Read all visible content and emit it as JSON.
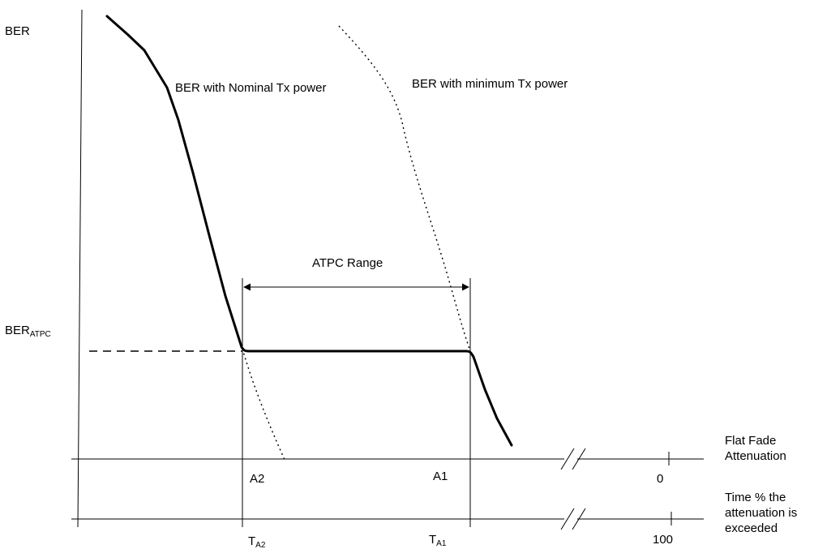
{
  "y_axis": {
    "label": "BER"
  },
  "threshold": {
    "label_main": "BER",
    "label_sub": "ATPC"
  },
  "curves": {
    "nominal": {
      "label": "BER with Nominal Tx power",
      "style": "solid"
    },
    "minimum": {
      "label": "BER with minimum Tx power",
      "style": "dotted"
    }
  },
  "range": {
    "label": "ATPC Range"
  },
  "axis_attenuation": {
    "title_lines": [
      "Flat Fade",
      "Attenuation"
    ],
    "marks": [
      "A2",
      "A1"
    ],
    "end_value": "0"
  },
  "axis_time": {
    "title_lines": [
      "Time % the",
      "attenuation is",
      "exceeded"
    ],
    "marks": [
      {
        "main": "T",
        "sub": "A2"
      },
      {
        "main": "T",
        "sub": "A1"
      }
    ],
    "end_value": "100"
  },
  "colors": {
    "ink": "#000000",
    "background": "#ffffff"
  }
}
